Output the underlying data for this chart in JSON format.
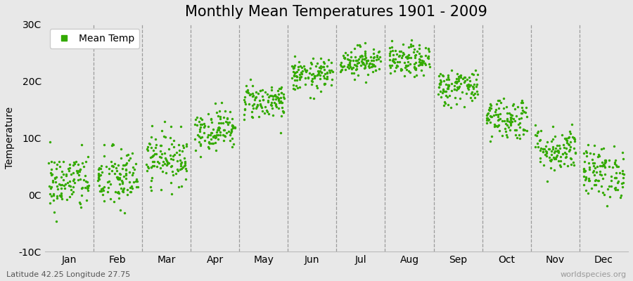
{
  "title": "Monthly Mean Temperatures 1901 - 2009",
  "ylabel": "Temperature",
  "xlabel_labels": [
    "Jan",
    "Feb",
    "Mar",
    "Apr",
    "May",
    "Jun",
    "Jul",
    "Aug",
    "Sep",
    "Oct",
    "Nov",
    "Dec"
  ],
  "legend_label": "Mean Temp",
  "ylim": [
    -10,
    30
  ],
  "yticks": [
    -10,
    0,
    10,
    20,
    30
  ],
  "ytick_labels": [
    "-10C",
    "0C",
    "10C",
    "20C",
    "30C"
  ],
  "dot_color": "#33aa00",
  "dot_size": 6,
  "background_color": "#e8e8e8",
  "plot_bg_color": "#e8e8e8",
  "grid_color": "#aaaaaa",
  "title_fontsize": 15,
  "axis_fontsize": 10,
  "tick_fontsize": 10,
  "footer_left": "Latitude 42.25 Longitude 27.75",
  "footer_right": "worldspecies.org",
  "monthly_means": [
    2.2,
    2.8,
    6.5,
    11.5,
    16.5,
    21.0,
    23.5,
    23.5,
    19.0,
    13.5,
    8.0,
    4.0
  ],
  "monthly_stds": [
    2.6,
    2.8,
    2.3,
    1.8,
    1.6,
    1.4,
    1.3,
    1.4,
    1.6,
    1.9,
    2.0,
    2.3
  ],
  "n_years": 109,
  "seed": 42
}
